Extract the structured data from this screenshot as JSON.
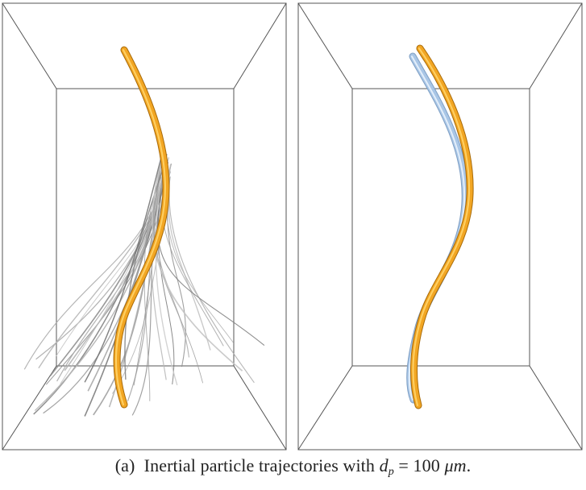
{
  "figure": {
    "caption_label": "(a)",
    "caption_text": "Inertial particle trajectories with",
    "caption_var": "d",
    "caption_subscript": "p",
    "caption_equals": "=",
    "caption_value": "100",
    "caption_unit_mu": "μ",
    "caption_unit_m": "m",
    "caption_period": "."
  },
  "colors": {
    "background": "#ffffff",
    "box_edge": "#555555",
    "fluid_tube": "#f2a623",
    "fluid_tube_highlight": "#ffd56b",
    "fluid_tube_shadow": "#b9770c",
    "particle_tube": "#a9c6e6",
    "particle_tube_highlight": "#e3eefa",
    "particle_tube_shadow": "#7f9fc4",
    "spread_trajectory": "#9a9a9a"
  },
  "panels": [
    {
      "name": "left-panel",
      "description_icon": "trajectory-ensemble-icon",
      "spread_trajectory_count": 36
    },
    {
      "name": "right-panel",
      "description_icon": "trajectory-pair-icon"
    }
  ]
}
